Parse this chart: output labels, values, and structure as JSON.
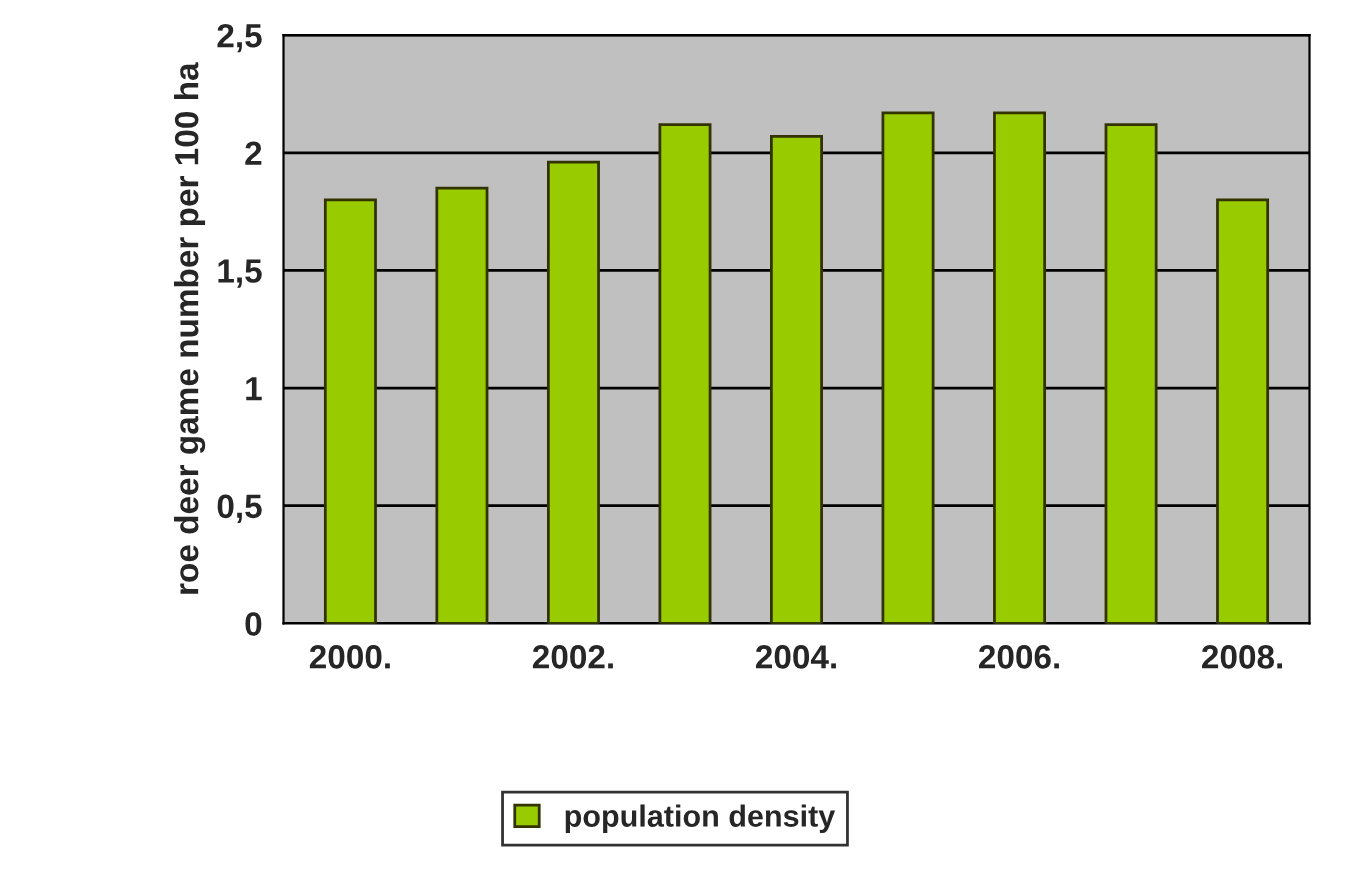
{
  "chart_data": {
    "type": "bar",
    "categories": [
      "2000.",
      null,
      "2002.",
      null,
      "2004.",
      null,
      "2006.",
      null,
      "2008."
    ],
    "series": [
      {
        "name": "population density",
        "color": "#99cc00",
        "values": [
          1.8,
          1.85,
          1.96,
          2.12,
          2.07,
          2.17,
          2.17,
          2.12,
          1.8
        ]
      }
    ],
    "ylabel": "roe deer game number per 100 ha",
    "ylim": [
      0,
      2.5
    ],
    "yticks": [
      0,
      {
        "value": 0.5,
        "label": "0,5"
      },
      1,
      {
        "value": 1.5,
        "label": "1,5"
      },
      2,
      {
        "value": 2.5,
        "label": "2,5"
      }
    ],
    "grid": "y",
    "legend": "bottom"
  }
}
